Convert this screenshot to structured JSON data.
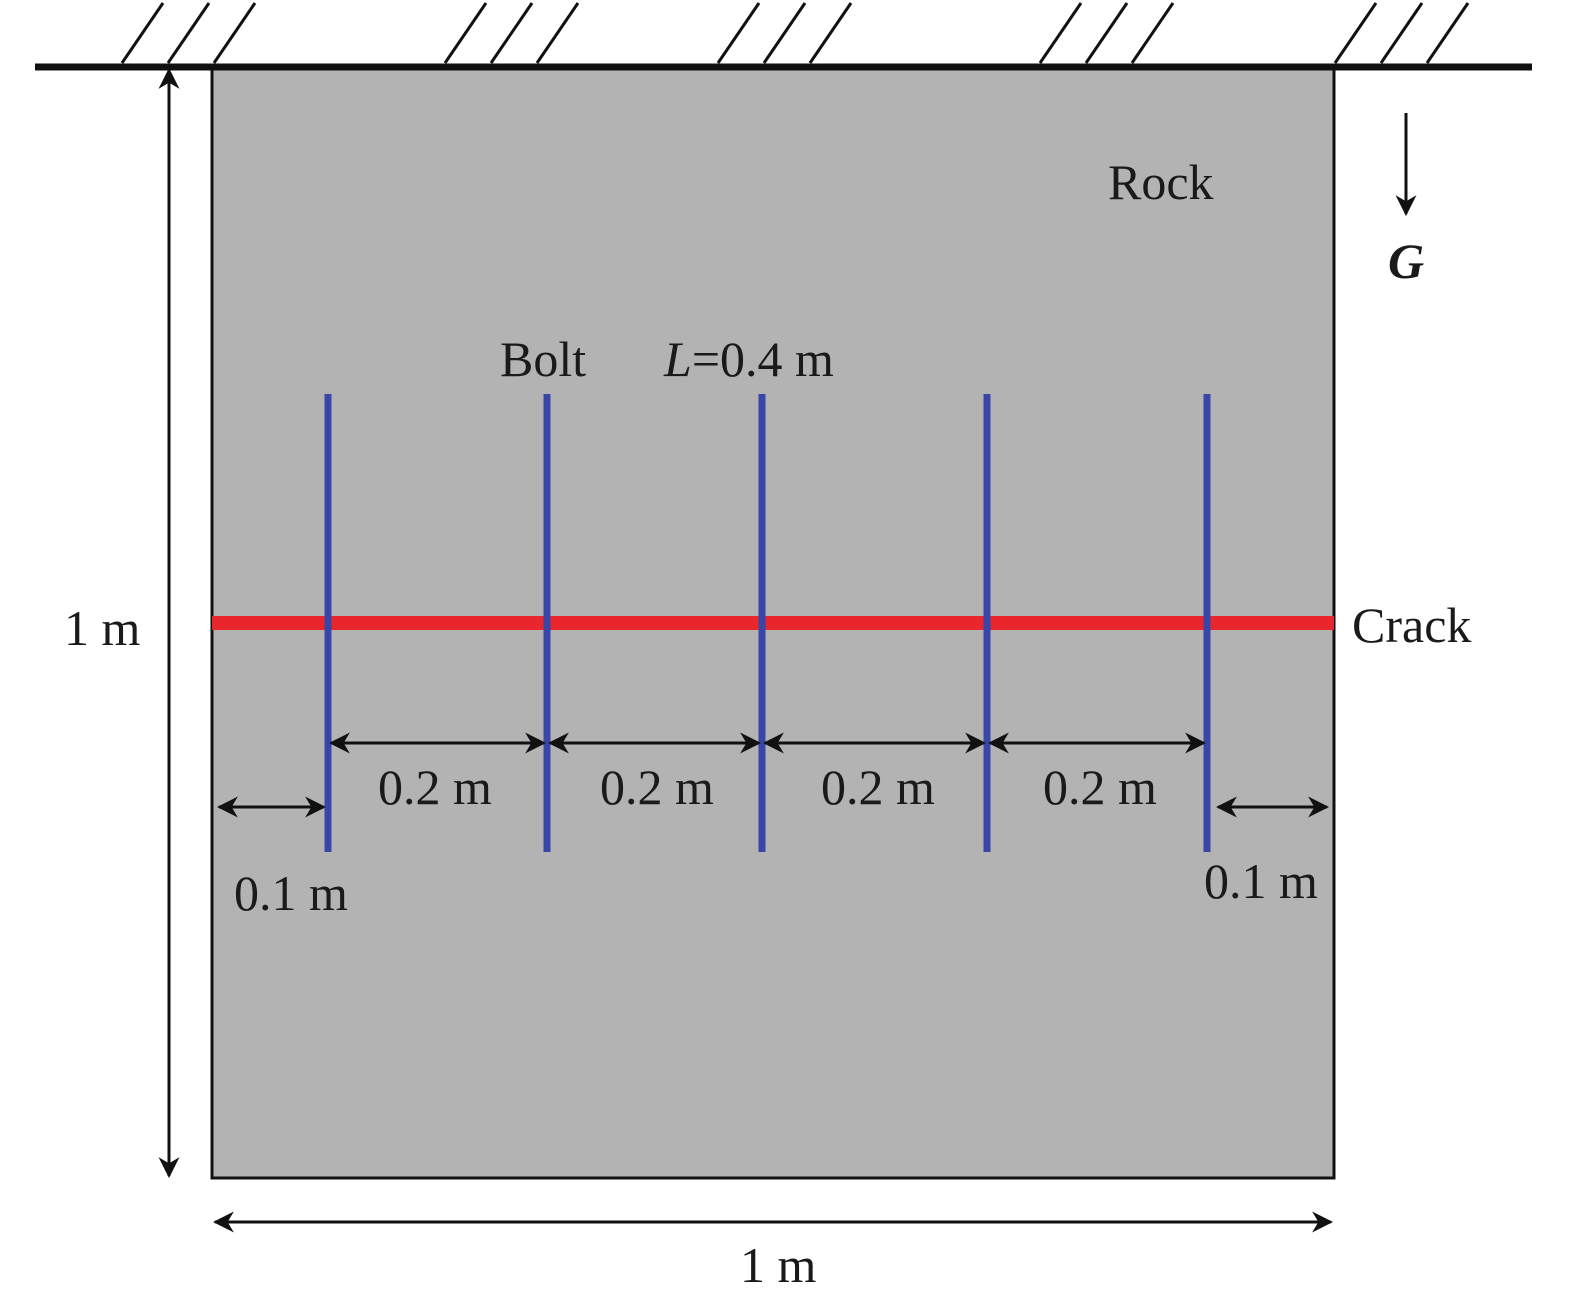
{
  "labels": {
    "rock": "Rock",
    "gravity": "G",
    "bolt": "Bolt",
    "length_symbol": "L",
    "length_value": "=0.4 m",
    "crack": "Crack",
    "height": "1 m",
    "width": "1 m",
    "spacing": [
      "0.2 m",
      "0.2 m",
      "0.2 m",
      "0.2 m"
    ],
    "edge_left": "0.1 m",
    "edge_right": "0.1 m"
  },
  "colors": {
    "rock_fill": "#b3b3b3",
    "bolt": "#3a45a8",
    "crack": "#e8262b",
    "line": "#111111"
  },
  "bolts": [
    {
      "id": "bolt-1",
      "position_m": 0.1
    },
    {
      "id": "bolt-2",
      "position_m": 0.3
    },
    {
      "id": "bolt-3",
      "position_m": 0.5
    },
    {
      "id": "bolt-4",
      "position_m": 0.7
    },
    {
      "id": "bolt-5",
      "position_m": 0.9
    }
  ]
}
